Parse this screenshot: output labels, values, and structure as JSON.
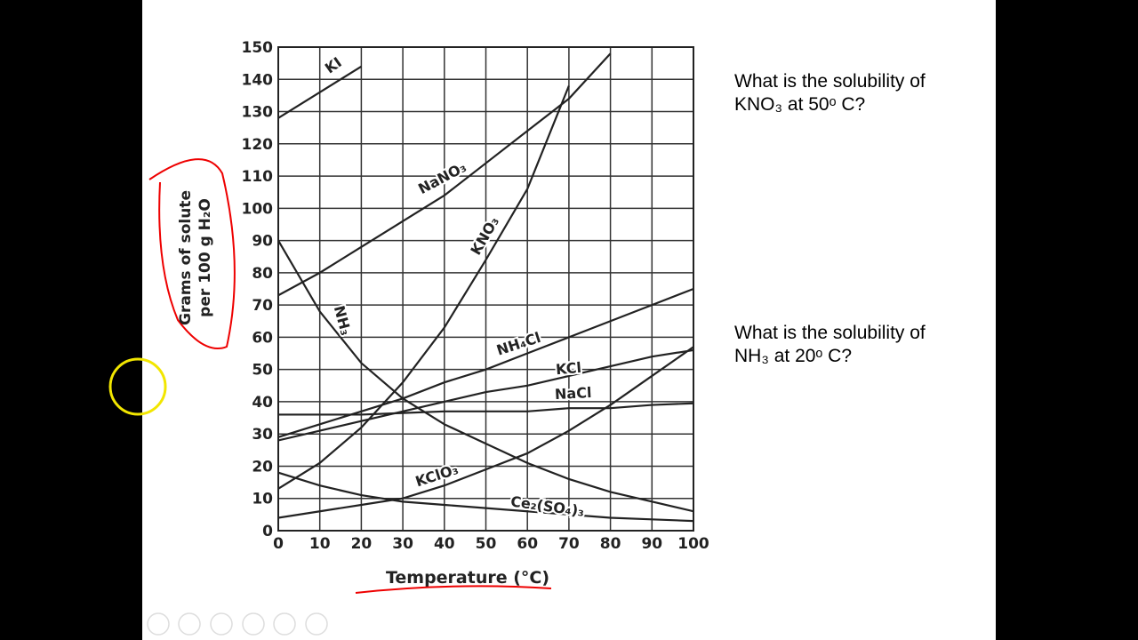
{
  "chart_data": {
    "type": "line",
    "x_label": "Temperature (°C)",
    "y_label": "Grams of solute per 100 g H₂O",
    "x": [
      0,
      10,
      20,
      30,
      40,
      50,
      60,
      70,
      80,
      90,
      100
    ],
    "xlim": [
      0,
      100
    ],
    "xticks": [
      0,
      10,
      20,
      30,
      40,
      50,
      60,
      70,
      80,
      90,
      100
    ],
    "ylim": [
      0,
      150
    ],
    "yticks": [
      0,
      10,
      20,
      30,
      40,
      50,
      60,
      70,
      80,
      90,
      100,
      110,
      120,
      130,
      140,
      150
    ],
    "grid": true,
    "series": [
      {
        "name": "KI",
        "color": "#222222",
        "values": [
          128,
          136,
          144,
          null,
          null,
          null,
          null,
          null,
          null,
          null,
          null
        ]
      },
      {
        "name": "NaNO₃",
        "color": "#222222",
        "values": [
          73,
          80,
          88,
          96,
          104,
          114,
          124,
          134,
          148,
          null,
          null
        ]
      },
      {
        "name": "KNO₃",
        "color": "#222222",
        "values": [
          13,
          21,
          32,
          46,
          63,
          84,
          106,
          138,
          null,
          null,
          null
        ]
      },
      {
        "name": "NH₄Cl",
        "color": "#222222",
        "values": [
          29,
          33,
          37,
          41,
          46,
          50,
          55,
          60,
          65,
          70,
          75
        ]
      },
      {
        "name": "KCl",
        "color": "#222222",
        "values": [
          28,
          31,
          34,
          37,
          40,
          43,
          45,
          48,
          51,
          54,
          56
        ]
      },
      {
        "name": "NaCl",
        "color": "#222222",
        "values": [
          36,
          36,
          36,
          36.5,
          37,
          37,
          37,
          38,
          38,
          39,
          39.5
        ]
      },
      {
        "name": "NH₃",
        "color": "#222222",
        "values": [
          90,
          68,
          52,
          41,
          33,
          27,
          21,
          16,
          12,
          9,
          6
        ]
      },
      {
        "name": "KClO₃",
        "color": "#222222",
        "values": [
          4,
          6,
          8,
          10,
          14,
          19,
          24,
          31,
          39,
          48,
          57
        ]
      },
      {
        "name": "Ce₂(SO₄)₃",
        "color": "#222222",
        "values": [
          18,
          14,
          11,
          9,
          8,
          7,
          6,
          5,
          4,
          3.5,
          3
        ]
      }
    ]
  },
  "questions": [
    "What is the solubility of KNO₃ at 50ᵒ C?",
    "What is the solubility of NH₃ at 20ᵒ C?"
  ]
}
